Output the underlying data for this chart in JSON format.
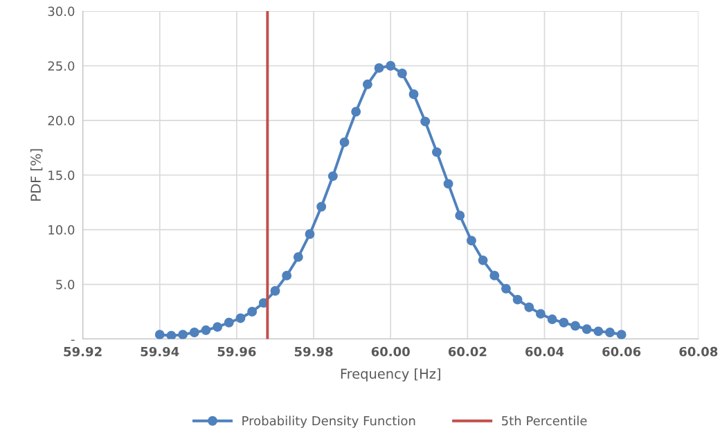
{
  "chart_data": {
    "type": "line",
    "xlabel": "Frequency [Hz]",
    "ylabel": "PDF [%]",
    "x": [
      59.94,
      59.943,
      59.946,
      59.949,
      59.952,
      59.955,
      59.958,
      59.961,
      59.964,
      59.967,
      59.97,
      59.973,
      59.976,
      59.979,
      59.982,
      59.985,
      59.988,
      59.991,
      59.994,
      59.997,
      60.0,
      60.003,
      60.006,
      60.009,
      60.012,
      60.015,
      60.018,
      60.021,
      60.024,
      60.027,
      60.03,
      60.033,
      60.036,
      60.039,
      60.042,
      60.045,
      60.048,
      60.051,
      60.054,
      60.057,
      60.06
    ],
    "series": [
      {
        "name": "Probability Density Function",
        "color": "#4f81bd",
        "values": [
          0.4,
          0.3,
          0.4,
          0.6,
          0.8,
          1.1,
          1.5,
          1.9,
          2.5,
          3.3,
          4.4,
          5.8,
          7.5,
          9.6,
          12.1,
          14.9,
          18.0,
          20.8,
          23.3,
          24.8,
          25.0,
          24.3,
          22.4,
          19.9,
          17.1,
          14.2,
          11.3,
          9.0,
          7.2,
          5.8,
          4.6,
          3.6,
          2.9,
          2.3,
          1.8,
          1.5,
          1.2,
          0.9,
          0.7,
          0.6,
          0.4
        ]
      }
    ],
    "ref_lines": [
      {
        "axis": "x",
        "value": 59.968,
        "label": "5th Percentile",
        "color": "#c0504d"
      }
    ],
    "xlim": [
      59.92,
      60.08
    ],
    "xticks": [
      {
        "value": 59.92,
        "label": "59.92"
      },
      {
        "value": 59.94,
        "label": "59.94"
      },
      {
        "value": 59.96,
        "label": "59.96"
      },
      {
        "value": 59.98,
        "label": "59.98"
      },
      {
        "value": 60.0,
        "label": "60.00"
      },
      {
        "value": 60.02,
        "label": "60.02"
      },
      {
        "value": 60.04,
        "label": "60.04"
      },
      {
        "value": 60.06,
        "label": "60.06"
      },
      {
        "value": 60.08,
        "label": "60.08"
      }
    ],
    "ylim": [
      0,
      30
    ],
    "yticks": [
      {
        "value": 0,
        "label": "-"
      },
      {
        "value": 5,
        "label": "5.0"
      },
      {
        "value": 10,
        "label": "10.0"
      },
      {
        "value": 15,
        "label": "15.0"
      },
      {
        "value": 20,
        "label": "20.0"
      },
      {
        "value": 25,
        "label": "25.0"
      },
      {
        "value": 30,
        "label": "30.0"
      }
    ],
    "grid": true,
    "legend": "bottom",
    "marker": "circle",
    "line_style": "solid"
  }
}
